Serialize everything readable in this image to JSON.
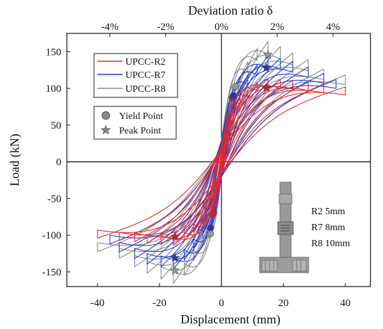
{
  "chart_data": {
    "type": "line",
    "xlabel": "Displacement (mm)",
    "ylabel": "Load (kN)",
    "top_axis_label": "Deviation ratio δ",
    "xlim": [
      -50,
      50
    ],
    "ylim": [
      -170,
      175
    ],
    "x_ticks": [
      -40,
      -20,
      0,
      20,
      40
    ],
    "y_ticks": [
      -150,
      -100,
      -50,
      0,
      50,
      100,
      150
    ],
    "top_ticks": [
      {
        "x": -36,
        "label": "-4%"
      },
      {
        "x": -18,
        "label": "-2%"
      },
      {
        "x": 0,
        "label": "0%"
      },
      {
        "x": 18,
        "label": "2%"
      },
      {
        "x": 36,
        "label": "4%"
      }
    ],
    "grid": false,
    "legend_position": "top-left",
    "series": [
      {
        "name": "UPCC-R2",
        "color": "#e8262a",
        "marker_color": "#d21f24",
        "yield_point": {
          "x": 3.5,
          "y": 87,
          "x_neg": -2.5,
          "y_neg": -70
        },
        "peak_point": {
          "x": 14.5,
          "y": 101,
          "x_neg": -15,
          "y_neg": -102
        },
        "loops": [
          {
            "d": 2,
            "f": 35,
            "dn": 2,
            "fn": 30
          },
          {
            "d": 4,
            "f": 62,
            "dn": 4,
            "fn": 60
          },
          {
            "d": 6,
            "f": 78,
            "dn": 6,
            "fn": 75
          },
          {
            "d": 8.5,
            "f": 88,
            "dn": 9,
            "fn": 85
          },
          {
            "d": 11.5,
            "f": 97,
            "dn": 12,
            "fn": 96
          },
          {
            "d": 15,
            "f": 101,
            "dn": 15.5,
            "fn": 102
          },
          {
            "d": 19,
            "f": 100,
            "dn": 19.5,
            "fn": 101
          },
          {
            "d": 23,
            "f": 99,
            "dn": 24,
            "fn": 99
          },
          {
            "d": 28,
            "f": 97,
            "dn": 28,
            "fn": 97
          },
          {
            "d": 33,
            "f": 94,
            "dn": 33,
            "fn": 96
          },
          {
            "d": 40,
            "f": 91,
            "dn": 40,
            "fn": 93
          }
        ]
      },
      {
        "name": "UPCC-R7",
        "color": "#1f3fd8",
        "marker_color": "#1a34c8",
        "yield_point": {
          "x": 3.8,
          "y": 90,
          "x_neg": -3.5,
          "y_neg": -90
        },
        "peak_point": {
          "x": 14.5,
          "y": 128,
          "x_neg": -15,
          "y_neg": -131
        },
        "loops": [
          {
            "d": 2,
            "f": 40,
            "dn": 2,
            "fn": 38
          },
          {
            "d": 4,
            "f": 70,
            "dn": 4,
            "fn": 68
          },
          {
            "d": 6,
            "f": 90,
            "dn": 6,
            "fn": 88
          },
          {
            "d": 8.5,
            "f": 105,
            "dn": 9,
            "fn": 105
          },
          {
            "d": 11.5,
            "f": 118,
            "dn": 12,
            "fn": 120
          },
          {
            "d": 15,
            "f": 128,
            "dn": 15.5,
            "fn": 131
          },
          {
            "d": 19,
            "f": 126,
            "dn": 19.5,
            "fn": 128
          },
          {
            "d": 23,
            "f": 122,
            "dn": 24,
            "fn": 125
          },
          {
            "d": 28,
            "f": 115,
            "dn": 28,
            "fn": 118
          },
          {
            "d": 33,
            "f": 107,
            "dn": 33,
            "fn": 110
          },
          {
            "d": 37,
            "f": 100,
            "dn": 36,
            "fn": 100
          }
        ]
      },
      {
        "name": "UPCC-R8",
        "color": "#888888",
        "marker_color": "#999999",
        "yield_point": {
          "x": 4.5,
          "y": 103,
          "x_neg": -3.5,
          "y_neg": -98
        },
        "peak_point": {
          "x": 15,
          "y": 146,
          "x_neg": -15,
          "y_neg": -148
        },
        "loops": [
          {
            "d": 2,
            "f": 45,
            "dn": 2,
            "fn": 42
          },
          {
            "d": 4,
            "f": 80,
            "dn": 4,
            "fn": 78
          },
          {
            "d": 6,
            "f": 103,
            "dn": 6,
            "fn": 100
          },
          {
            "d": 8.5,
            "f": 122,
            "dn": 9,
            "fn": 120
          },
          {
            "d": 11.5,
            "f": 138,
            "dn": 12,
            "fn": 138
          },
          {
            "d": 15,
            "f": 146,
            "dn": 15.5,
            "fn": 148
          },
          {
            "d": 19,
            "f": 140,
            "dn": 19.5,
            "fn": 143
          },
          {
            "d": 23,
            "f": 132,
            "dn": 24,
            "fn": 136
          },
          {
            "d": 28,
            "f": 124,
            "dn": 28,
            "fn": 128
          },
          {
            "d": 33,
            "f": 112,
            "dn": 33,
            "fn": 118
          },
          {
            "d": 40,
            "f": 105,
            "dn": 40,
            "fn": 110
          }
        ]
      }
    ]
  },
  "legend": {
    "items": [
      "UPCC-R2",
      "UPCC-R7",
      "UPCC-R8"
    ],
    "points": [
      "Yield Point",
      "Peak Point"
    ]
  },
  "annotation": {
    "lines": [
      "R2 5mm",
      "R7 8mm",
      "R8 10mm"
    ]
  }
}
